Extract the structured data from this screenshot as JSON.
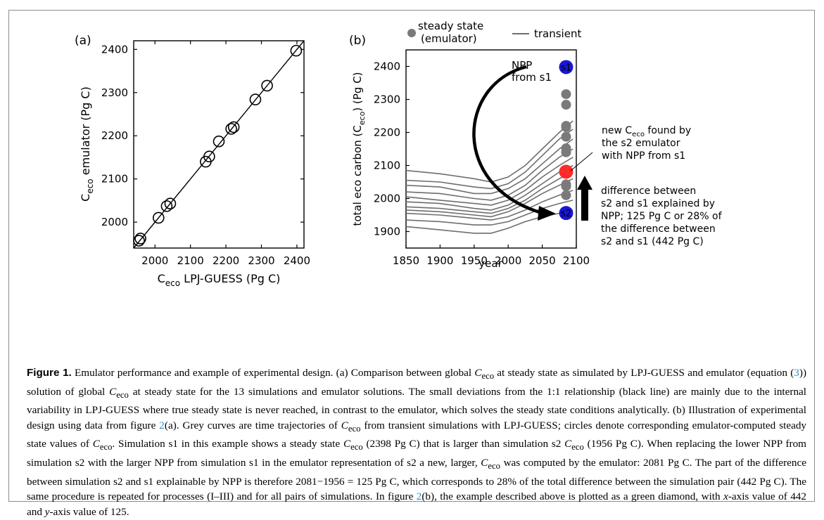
{
  "figure": {
    "panel_a": {
      "label": "(a)"
    },
    "panel_b": {
      "label": "(b)",
      "legend": {
        "steady": "steady state",
        "steady2": "(emulator)",
        "transient": "transient"
      },
      "arrow_label_1": "NPP",
      "arrow_label_2": "from s1",
      "s1_label": "s1",
      "s2_label": "s2",
      "callout_new": [
        "new C",
        "eco",
        " found by",
        "the s2 emulator",
        "with NPP from s1"
      ],
      "callout_diff": [
        "difference between",
        "s2 and s1 explained by",
        "NPP; 125 Pg C or 28% of",
        "the difference between",
        "s2 and s1 (442 Pg C)"
      ]
    },
    "colors": {
      "grey": "#6e6e6e",
      "blue": "#1a16d6",
      "red": "#ff2a2a",
      "circle_grey": "#7a7a7a"
    }
  },
  "chart_data": [
    {
      "type": "scatter",
      "panel": "(a)",
      "xlabel": "C eco LPJ-GUESS (Pg C)",
      "xlabel_main": "C",
      "xlabel_sub": "eco",
      "xlabel_rest": " LPJ-GUESS (Pg C)",
      "ylabel_main": "C",
      "ylabel_sub": "eco",
      "ylabel_rest": " emulator (Pg C)",
      "xlim": [
        1940,
        2420
      ],
      "ylim": [
        1940,
        2420
      ],
      "xticks": [
        2000,
        2100,
        2200,
        2300,
        2400
      ],
      "yticks": [
        2000,
        2100,
        2200,
        2300,
        2400
      ],
      "one_to_one_line": true,
      "points": [
        {
          "x": 1955,
          "y": 1957
        },
        {
          "x": 1959,
          "y": 1962
        },
        {
          "x": 2010,
          "y": 2010
        },
        {
          "x": 2033,
          "y": 2037
        },
        {
          "x": 2043,
          "y": 2043
        },
        {
          "x": 2143,
          "y": 2140
        },
        {
          "x": 2153,
          "y": 2152
        },
        {
          "x": 2180,
          "y": 2187
        },
        {
          "x": 2215,
          "y": 2216
        },
        {
          "x": 2222,
          "y": 2220
        },
        {
          "x": 2283,
          "y": 2284
        },
        {
          "x": 2316,
          "y": 2316
        },
        {
          "x": 2398,
          "y": 2397
        }
      ]
    },
    {
      "type": "line",
      "panel": "(b)",
      "xlabel": "year",
      "ylabel_main": "total eco carbon (C",
      "ylabel_sub": "eco",
      "ylabel_rest": ") (Pg C)",
      "xlim": [
        1850,
        2100
      ],
      "ylim": [
        1850,
        2450
      ],
      "xticks": [
        1850,
        1900,
        1950,
        2000,
        2050,
        2100
      ],
      "yticks": [
        1900,
        2000,
        2100,
        2200,
        2300,
        2400
      ],
      "series": [
        {
          "x": [
            1850,
            1900,
            1950,
            1975,
            2000,
            2025,
            2050,
            2075,
            2095
          ],
          "y": [
            2085,
            2075,
            2060,
            2050,
            2065,
            2100,
            2150,
            2200,
            2235
          ]
        },
        {
          "x": [
            1850,
            1900,
            1950,
            1975,
            2000,
            2025,
            2050,
            2075,
            2095
          ],
          "y": [
            2055,
            2050,
            2035,
            2030,
            2045,
            2080,
            2130,
            2180,
            2210
          ]
        },
        {
          "x": [
            1850,
            1900,
            1950,
            1975,
            2000,
            2025,
            2050,
            2075,
            2095
          ],
          "y": [
            2040,
            2035,
            2015,
            2015,
            2030,
            2060,
            2105,
            2150,
            2180
          ]
        },
        {
          "x": [
            1850,
            1900,
            1950,
            1975,
            2000,
            2025,
            2050,
            2075,
            2095
          ],
          "y": [
            2020,
            2015,
            2000,
            1995,
            2010,
            2040,
            2085,
            2125,
            2150
          ]
        },
        {
          "x": [
            1850,
            1900,
            1950,
            1975,
            2000,
            2025,
            2050,
            2075,
            2095
          ],
          "y": [
            2005,
            1995,
            1985,
            1980,
            1995,
            2025,
            2065,
            2100,
            2125
          ]
        },
        {
          "x": [
            1850,
            1900,
            1950,
            1975,
            2000,
            2025,
            2050,
            2075,
            2095
          ],
          "y": [
            1990,
            1985,
            1970,
            1965,
            1980,
            2010,
            2045,
            2080,
            2100
          ]
        },
        {
          "x": [
            1850,
            1900,
            1950,
            1975,
            2000,
            2025,
            2050,
            2075,
            2095
          ],
          "y": [
            1975,
            1970,
            1960,
            1955,
            1970,
            1995,
            2030,
            2060,
            2080
          ]
        },
        {
          "x": [
            1850,
            1900,
            1950,
            1975,
            2000,
            2025,
            2050,
            2075,
            2095
          ],
          "y": [
            1965,
            1960,
            1950,
            1945,
            1960,
            1985,
            2015,
            2040,
            2060
          ]
        },
        {
          "x": [
            1850,
            1900,
            1950,
            1975,
            2000,
            2025,
            2050,
            2075,
            2095
          ],
          "y": [
            1955,
            1950,
            1940,
            1935,
            1945,
            1965,
            1990,
            2010,
            2025
          ]
        },
        {
          "x": [
            1850,
            1900,
            1950,
            1975,
            2000,
            2025,
            2050,
            2075,
            2095
          ],
          "y": [
            1935,
            1930,
            1920,
            1920,
            1930,
            1950,
            1970,
            1985,
            1995
          ]
        },
        {
          "x": [
            1850,
            1900,
            1950,
            1975,
            2000,
            2025,
            2050,
            2075,
            2095
          ],
          "y": [
            1915,
            1905,
            1895,
            1895,
            1910,
            1930,
            1945,
            1955,
            1965
          ]
        }
      ],
      "steady_state_points": [
        2398,
        2316,
        2284,
        2220,
        2216,
        2187,
        2152,
        2140,
        2081,
        2043,
        2037,
        2010,
        1956
      ],
      "steady_state_x": 2085,
      "s1": 2398,
      "s2": 1956,
      "new_value": 2081
    }
  ],
  "caption": {
    "label": "Figure 1.",
    "s1": " Emulator performance and example of experimental design. (a) Comparison between global ",
    "c1": "C",
    "c1s": "eco",
    "s2": " at steady state as simulated by LPJ-GUESS and emulator (equation (",
    "ref3": "3",
    "s3": ")) solution of global ",
    "c2": "C",
    "c2s": "eco",
    "s4": " at steady state for the 13 simulations and emulator solutions. The small deviations from the 1:1 relationship (black line) are mainly due to the internal variability in LPJ-GUESS where true steady state is never reached, in contrast to the emulator, which solves the steady state conditions analytically. (b) Illustration of experimental design using data from figure ",
    "ref2a": "2",
    "s5": "(a). Grey curves are time trajectories of ",
    "c3": "C",
    "c3s": "eco",
    "s6": " from transient simulations with LPJ-GUESS; circles denote corresponding emulator-computed steady state values of ",
    "c4": "C",
    "c4s": "eco",
    "s7": ". Simulation s1 in this example shows a steady state ",
    "c5": "C",
    "c5s": "eco",
    "s8": " (2398 Pg C) that is larger than simulation s2 ",
    "c6": "C",
    "c6s": "eco",
    "s9": " (1956 Pg C). When replacing the lower NPP from simulation s2 with the larger NPP from simulation s1 in the emulator representation of s2 a new, larger, ",
    "c7": "C",
    "c7s": "eco",
    "s10": " was computed by the emulator: 2081 Pg C. The part of the difference between simulation s2 and s1 explainable by NPP is therefore 2081−1956 = 125 Pg C, which corresponds to 28% of the total difference between the simulation pair (442 Pg C). The same procedure is repeated for processes (I–III) and for all pairs of simulations. In figure ",
    "ref2b": "2",
    "s11": "(b), the example described above is plotted as a green diamond, with ",
    "xit": "x",
    "s12": "-axis value of 442 and ",
    "yit": "y",
    "s13": "-axis value of 125."
  }
}
